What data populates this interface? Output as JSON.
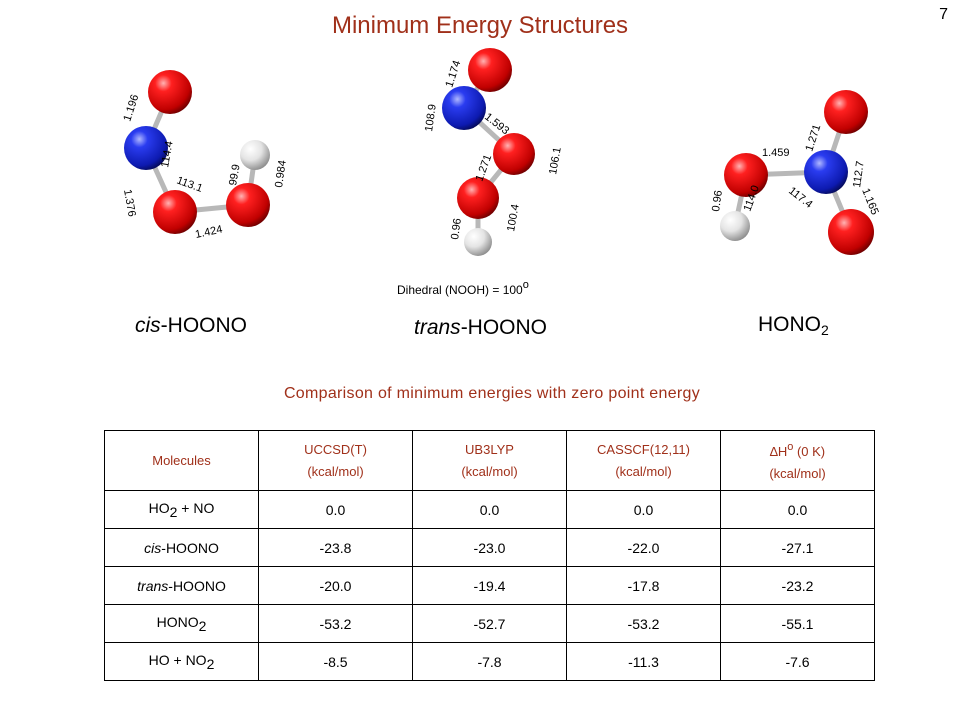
{
  "page_number": "7",
  "title": "Minimum Energy Structures",
  "molecules": {
    "cis": {
      "name_prefix": "cis",
      "name_suffix": "-HOONO",
      "labels": {
        "no_bond": "1.196",
        "onon_angle": "114.4",
        "on_bond": "1.376",
        "noo_angle": "113.1",
        "ooh_angle": "99.9",
        "oh_bond": "0.984",
        "oo_bond": "1.424"
      }
    },
    "trans": {
      "name_prefix": "trans",
      "name_suffix": "-HOONO",
      "labels": {
        "no_bond": "1.174",
        "ono_angle": "108.9",
        "on_bond": "1.593",
        "oo_bond": "1.271",
        "noo_angle": "106.1",
        "ooh_angle": "100.4",
        "oh_bond": "0.96"
      },
      "dihedral_note_text": "Dihedral (NOOH) = 100",
      "dihedral_note_sup": "o"
    },
    "hono2": {
      "name_main": "HONO",
      "name_sub": "2",
      "labels": {
        "on_bond": "1.459",
        "no_bond_top": "1.271",
        "angle_right": "112.7",
        "oh_bond": "0.96",
        "angle_left": "114.0",
        "angle_mid": "117.4",
        "no_bond_bottom": "1.165"
      }
    }
  },
  "comparison_title": "Comparison of minimum energies with zero point energy",
  "table": {
    "headers": [
      {
        "line1": "Molecules",
        "line2": ""
      },
      {
        "line1": "UCCSD(T)",
        "line2": "(kcal/mol)"
      },
      {
        "line1": "UB3LYP",
        "line2": "(kcal/mol)"
      },
      {
        "line1": "CASSCF(12,11)",
        "line2": "(kcal/mol)"
      },
      {
        "line1_delta": "∆H",
        "line1_sup": "o",
        "line1_rest": " (0 K)",
        "line2": "(kcal/mol)"
      }
    ],
    "rows": [
      {
        "name": "HO",
        "name_sub": "2",
        "name_rest": " + NO",
        "values": [
          "0.0",
          "0.0",
          "0.0",
          "0.0"
        ]
      },
      {
        "name_ital": "cis",
        "name_rest": "-HOONO",
        "values": [
          "-23.8",
          "-23.0",
          "-22.0",
          "-27.1"
        ]
      },
      {
        "name_ital": "trans",
        "name_rest": "-HOONO",
        "values": [
          "-20.0",
          "-19.4",
          "-17.8",
          "-23.2"
        ]
      },
      {
        "name": "HONO",
        "name_sub": "2",
        "values": [
          "-53.2",
          "-52.7",
          "-53.2",
          "-55.1"
        ]
      },
      {
        "name": "HO + NO",
        "name_sub": "2",
        "values": [
          "-8.5",
          "-7.8",
          "-11.3",
          "-7.6"
        ]
      }
    ]
  },
  "colors": {
    "title": "#a0301a",
    "oxygen": "#e00000",
    "nitrogen": "#1a2fd6",
    "hydrogen": "#e8e8e8",
    "bond": "#b8b8b8"
  }
}
